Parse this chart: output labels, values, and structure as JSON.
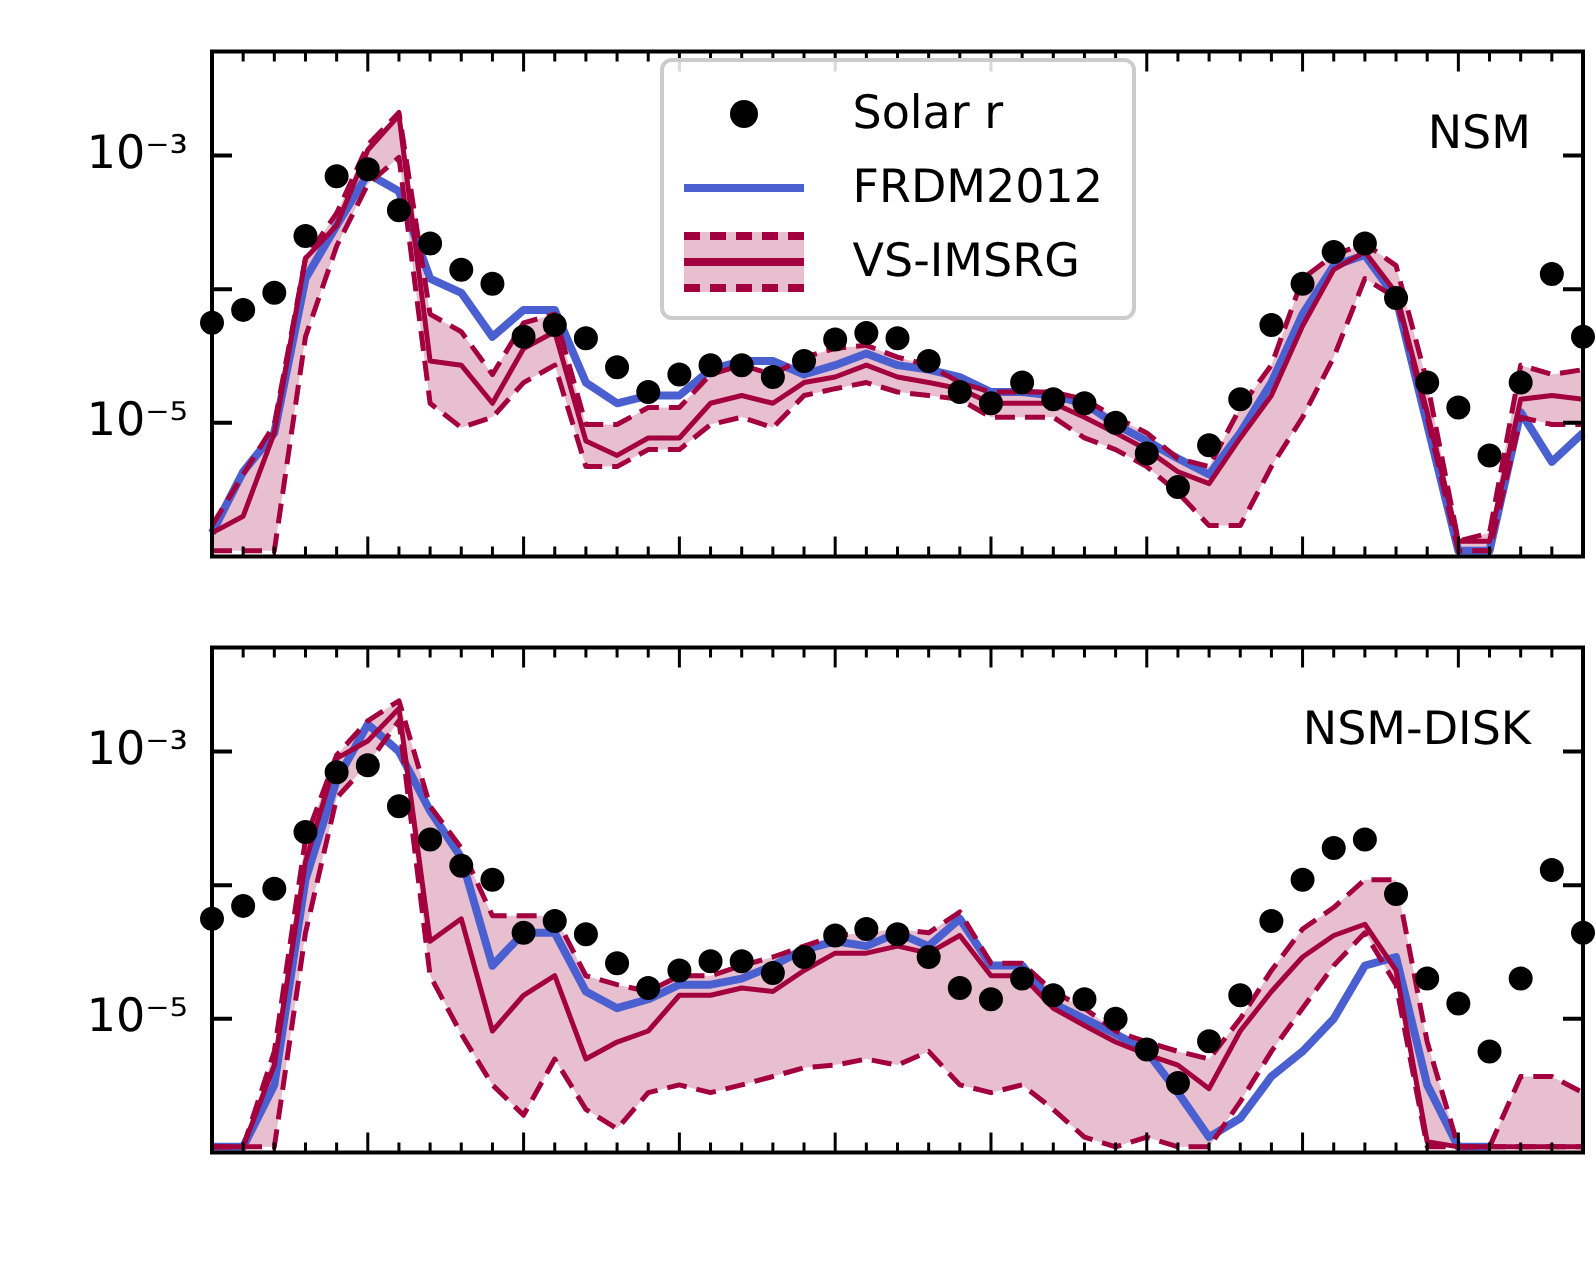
{
  "chart_data": [
    {
      "type": "line",
      "title": "NSM",
      "log": true,
      "grid": false,
      "legend": "top",
      "ylim": [
        1e-06,
        0.006
      ],
      "yticks": [
        {
          "value": 0.001,
          "label": "10⁻³"
        },
        {
          "value": 0.0001,
          "label": null
        },
        {
          "value": 1e-05,
          "label": "10⁻⁵"
        }
      ],
      "categories": [
        null,
        null,
        null,
        null,
        null,
        null,
        null,
        null,
        null,
        null,
        null,
        null,
        null,
        null,
        null,
        null,
        null,
        null,
        null,
        null,
        null,
        null,
        null,
        null,
        null,
        null,
        null,
        null,
        null,
        null,
        null,
        null,
        null,
        null,
        null,
        null,
        null,
        null,
        null,
        null,
        null,
        null,
        null,
        null,
        null
      ],
      "series": [
        {
          "name": "Solar r",
          "type": "scatter",
          "marker": "circle",
          "color": "#000000",
          "values": [
            5.6e-05,
            7e-05,
            9.4e-05,
            0.00025,
            0.0007,
            0.00079,
            0.00039,
            0.00022,
            0.00014,
            0.00011,
            4.4e-05,
            5.4e-05,
            4.3e-05,
            2.6e-05,
            1.7e-05,
            2.3e-05,
            2.7e-05,
            2.7e-05,
            2.2e-05,
            2.9e-05,
            4.2e-05,
            4.7e-05,
            4.3e-05,
            2.9e-05,
            1.7e-05,
            1.4e-05,
            2e-05,
            1.5e-05,
            1.4e-05,
            1e-05,
            5.9e-06,
            3.3e-06,
            6.8e-06,
            1.5e-05,
            5.4e-05,
            0.00011,
            0.00019,
            0.00022,
            8.6e-05,
            2e-05,
            1.3e-05,
            5.7e-06,
            2e-05,
            0.00013,
            4.4e-05
          ]
        },
        {
          "name": "FRDM2012",
          "color": "#4a5fd0",
          "values": [
            1.5e-06,
            4.3e-06,
            8.4e-06,
            0.00012,
            0.0003,
            0.00073,
            0.00054,
            0.00012,
            9.4e-05,
            4.4e-05,
            7e-05,
            7e-05,
            2e-05,
            1.4e-05,
            1.6e-05,
            1.6e-05,
            2.5e-05,
            2.9e-05,
            2.9e-05,
            2.3e-05,
            2.7e-05,
            3.3e-05,
            2.7e-05,
            2.5e-05,
            2.2e-05,
            1.7e-05,
            1.7e-05,
            1.6e-05,
            1.4e-05,
            9.7e-06,
            7.3e-06,
            5.4e-06,
            4.1e-06,
            8.4e-06,
            2e-05,
            6.5e-05,
            0.00015,
            0.00018,
            8.6e-05,
            9.7e-06,
            1.1e-06,
            1.1e-06,
            1.2e-05,
            5.1e-06,
            8.4e-06
          ]
        },
        {
          "name": "VS-IMSRG",
          "color": "#a3003f",
          "values": [
            1.5e-06,
            2e-06,
            8.4e-06,
            0.00017,
            0.0003,
            0.0011,
            0.002,
            2.9e-05,
            2.7e-05,
            1.4e-05,
            3.6e-05,
            4.8e-05,
            7.3e-06,
            5.7e-06,
            7.7e-06,
            7.7e-06,
            1.4e-05,
            1.6e-05,
            1.4e-05,
            2e-05,
            2.2e-05,
            2.7e-05,
            2.2e-05,
            2e-05,
            1.8e-05,
            1.4e-05,
            1.4e-05,
            1.4e-05,
            1.1e-05,
            8.4e-06,
            6.3e-06,
            4.3e-06,
            3.5e-06,
            7.7e-06,
            1.6e-05,
            5.3e-05,
            0.00014,
            0.00019,
            9.4e-05,
            1.2e-05,
            1.3e-06,
            1.3e-06,
            1.5e-05,
            1.6e-05,
            1.5e-05
          ],
          "upper": [
            1.7e-06,
            4.1e-06,
            9.7e-06,
            0.00017,
            0.00037,
            0.0012,
            0.0021,
            6.5e-05,
            4.8e-05,
            2.3e-05,
            5.6e-05,
            6.5e-05,
            9.7e-06,
            9.7e-06,
            1.3e-05,
            1.3e-05,
            2.3e-05,
            2.7e-05,
            2.3e-05,
            3.1e-05,
            3.6e-05,
            3.8e-05,
            3.1e-05,
            2.7e-05,
            2e-05,
            1.7e-05,
            1.7e-05,
            1.7e-05,
            1.5e-05,
            1.1e-05,
            8.4e-06,
            5.4e-06,
            4.7e-06,
            1.3e-05,
            2.7e-05,
            0.00012,
            0.00018,
            0.00022,
            0.00015,
            2e-05,
            1.3e-06,
            1.5e-06,
            2.7e-05,
            2.3e-05,
            2.5e-05
          ],
          "lower": [
            1.1e-06,
            1.1e-06,
            1.1e-06,
            4.4e-05,
            0.00021,
            0.00061,
            0.00097,
            1.4e-05,
            9.2e-06,
            1.1e-05,
            2e-05,
            2.7e-05,
            4.7e-06,
            4.7e-06,
            6.3e-06,
            6.3e-06,
            9.7e-06,
            1.1e-05,
            9.2e-06,
            1.6e-05,
            1.8e-05,
            2e-05,
            1.7e-05,
            1.6e-05,
            1.5e-05,
            1.1e-05,
            1.1e-05,
            1.1e-05,
            7.7e-06,
            6.3e-06,
            4.7e-06,
            3e-06,
            1.7e-06,
            1.7e-06,
            4.7e-06,
            1.1e-05,
            3.1e-05,
            0.00012,
            8.6e-05,
            1.1e-05,
            1.1e-06,
            1.1e-06,
            1.1e-05,
            9.7e-06,
            9.7e-06
          ]
        },
        {
          "line_style": "dashed",
          "color": "#a3003f",
          "values": [
            1.7e-06,
            4.1e-06,
            9.7e-06,
            0.00017,
            0.00037,
            0.0012,
            0.0021,
            6.5e-05,
            4.8e-05,
            2.3e-05,
            5.6e-05,
            6.5e-05,
            9.7e-06,
            9.7e-06,
            1.3e-05,
            1.3e-05,
            2.3e-05,
            2.7e-05,
            2.3e-05,
            3.1e-05,
            3.6e-05,
            3.8e-05,
            3.1e-05,
            2.7e-05,
            2e-05,
            1.7e-05,
            1.7e-05,
            1.7e-05,
            1.5e-05,
            1.1e-05,
            8.4e-06,
            5.4e-06,
            4.7e-06,
            1.3e-05,
            2.7e-05,
            0.00012,
            0.00018,
            0.00022,
            0.00015,
            2e-05,
            1.3e-06,
            1.5e-06,
            2.7e-05,
            2.3e-05,
            2.5e-05
          ]
        },
        {
          "line_style": "dashed",
          "color": "#a3003f",
          "values": [
            1.1e-06,
            1.1e-06,
            1.1e-06,
            4.4e-05,
            0.00021,
            0.00061,
            0.00097,
            1.4e-05,
            9.2e-06,
            1.1e-05,
            2e-05,
            2.7e-05,
            4.7e-06,
            4.7e-06,
            6.3e-06,
            6.3e-06,
            9.7e-06,
            1.1e-05,
            9.2e-06,
            1.6e-05,
            1.8e-05,
            2e-05,
            1.7e-05,
            1.6e-05,
            1.5e-05,
            1.1e-05,
            1.1e-05,
            1.1e-05,
            7.7e-06,
            6.3e-06,
            4.7e-06,
            3e-06,
            1.7e-06,
            1.7e-06,
            4.7e-06,
            1.1e-05,
            3.1e-05,
            0.00012,
            8.6e-05,
            1.1e-05,
            1.1e-06,
            1.1e-06,
            1.1e-05,
            9.7e-06,
            9.7e-06
          ]
        }
      ]
    },
    {
      "type": "line",
      "title": "NSM-DISK",
      "log": true,
      "grid": false,
      "ylim": [
        1e-06,
        0.006
      ],
      "yticks": [
        {
          "value": 0.001,
          "label": "10⁻³"
        },
        {
          "value": 0.0001,
          "label": null
        },
        {
          "value": 1e-05,
          "label": "10⁻⁵"
        }
      ],
      "categories": [
        null,
        null,
        null,
        null,
        null,
        null,
        null,
        null,
        null,
        null,
        null,
        null,
        null,
        null,
        null,
        null,
        null,
        null,
        null,
        null,
        null,
        null,
        null,
        null,
        null,
        null,
        null,
        null,
        null,
        null,
        null,
        null,
        null,
        null,
        null,
        null,
        null,
        null,
        null,
        null,
        null,
        null,
        null,
        null,
        null
      ],
      "series": [
        {
          "type": "scatter",
          "marker": "circle",
          "color": "#000000",
          "values": [
            5.6e-05,
            7e-05,
            9.4e-05,
            0.00025,
            0.0007,
            0.00079,
            0.00039,
            0.00022,
            0.00014,
            0.00011,
            4.4e-05,
            5.4e-05,
            4.3e-05,
            2.6e-05,
            1.7e-05,
            2.3e-05,
            2.7e-05,
            2.7e-05,
            2.2e-05,
            2.9e-05,
            4.2e-05,
            4.7e-05,
            4.3e-05,
            2.9e-05,
            1.7e-05,
            1.4e-05,
            2e-05,
            1.5e-05,
            1.4e-05,
            1e-05,
            5.9e-06,
            3.3e-06,
            6.8e-06,
            1.5e-05,
            5.4e-05,
            0.00011,
            0.00019,
            0.00022,
            8.6e-05,
            2e-05,
            1.3e-05,
            5.7e-06,
            2e-05,
            0.00013,
            4.4e-05
          ]
        },
        {
          "color": "#4a5fd0",
          "values": [
            1.1e-06,
            1.1e-06,
            3.2e-06,
            0.00011,
            0.00061,
            0.0016,
            0.001,
            0.00036,
            0.00016,
            2.5e-05,
            4.4e-05,
            4.4e-05,
            1.6e-05,
            1.2e-05,
            1.4e-05,
            1.8e-05,
            1.8e-05,
            2e-05,
            2.5e-05,
            3.3e-05,
            3.8e-05,
            3.5e-05,
            4.4e-05,
            3.5e-05,
            5.6e-05,
            2.5e-05,
            2.5e-05,
            1.3e-05,
            1e-05,
            7.7e-06,
            5.7e-06,
            2.8e-06,
            1.3e-06,
            1.8e-06,
            3.7e-06,
            5.7e-06,
            1e-05,
            2.5e-05,
            2.9e-05,
            3.2e-06,
            1.1e-06,
            1.1e-06,
            null,
            null,
            null
          ]
        },
        {
          "color": "#a3003f",
          "values": [
            1.1e-06,
            1.1e-06,
            4.5e-06,
            0.00015,
            0.00089,
            0.0012,
            0.0021,
            3.8e-05,
            5.6e-05,
            8.1e-06,
            1.5e-05,
            2.1e-05,
            5e-06,
            6.7e-06,
            8.1e-06,
            1.5e-05,
            1.5e-05,
            1.7e-05,
            1.6e-05,
            2.3e-05,
            3.1e-05,
            3.1e-05,
            3.5e-05,
            3.1e-05,
            4.2e-05,
            2.1e-05,
            2.1e-05,
            1.2e-05,
            8.9e-06,
            6.7e-06,
            5.4e-06,
            4.5e-06,
            3e-06,
            8.1e-06,
            1.6e-05,
            2.9e-05,
            4.2e-05,
            5.1e-05,
            2.3e-05,
            1.2e-06,
            1.1e-06,
            1.1e-06,
            1.1e-06,
            1.1e-06,
            1.1e-06
          ],
          "upper": [
            1.1e-06,
            1.1e-06,
            5.7e-06,
            0.00022,
            0.00094,
            0.0017,
            0.0024,
            0.00039,
            0.00019,
            5.9e-05,
            5.9e-05,
            5.9e-05,
            2.1e-05,
            1.8e-05,
            1.6e-05,
            2.1e-05,
            2.1e-05,
            2.5e-05,
            2.9e-05,
            3.5e-05,
            4.2e-05,
            4.4e-05,
            4.7e-05,
            4.4e-05,
            6.3e-05,
            2.6e-05,
            2.6e-05,
            1.6e-05,
            1.2e-05,
            8.1e-06,
            6.7e-06,
            5.7e-06,
            5e-06,
            1e-05,
            2.3e-05,
            4.7e-05,
            6.8e-05,
            0.00011,
            0.00011,
            6.7e-06,
            1.1e-06,
            1.1e-06,
            3.7e-06,
            3.7e-06,
            2.8e-06
          ],
          "lower": [
            1.1e-06,
            1.1e-06,
            1.1e-06,
            4.4e-05,
            0.00045,
            0.00081,
            0.0017,
            2.1e-05,
            7.7e-06,
            3.2e-06,
            1.9e-06,
            5e-06,
            2.1e-06,
            1.5e-06,
            2.8e-06,
            3.2e-06,
            2.8e-06,
            3.2e-06,
            3.7e-06,
            4.3e-06,
            4.5e-06,
            5e-06,
            4.5e-06,
            5.7e-06,
            3.2e-06,
            2.8e-06,
            3.2e-06,
            2.1e-06,
            1.3e-06,
            1.1e-06,
            1.3e-06,
            1.1e-06,
            1.1e-06,
            2.4e-06,
            5.7e-06,
            1.2e-05,
            2.5e-05,
            4.4e-05,
            1.8e-05,
            1.1e-06,
            1.1e-06,
            1.1e-06,
            1.1e-06,
            1.1e-06,
            1.1e-06
          ]
        },
        {
          "line_style": "dashed",
          "color": "#a3003f",
          "values": [
            1.1e-06,
            1.1e-06,
            5.7e-06,
            0.00022,
            0.00094,
            0.0017,
            0.0024,
            0.00039,
            0.00019,
            5.9e-05,
            5.9e-05,
            5.9e-05,
            2.1e-05,
            1.8e-05,
            1.6e-05,
            2.1e-05,
            2.1e-05,
            2.5e-05,
            2.9e-05,
            3.5e-05,
            4.2e-05,
            4.4e-05,
            4.7e-05,
            4.4e-05,
            6.3e-05,
            2.6e-05,
            2.6e-05,
            1.6e-05,
            1.2e-05,
            8.1e-06,
            6.7e-06,
            5.7e-06,
            5e-06,
            1e-05,
            2.3e-05,
            4.7e-05,
            6.8e-05,
            0.00011,
            0.00011,
            6.7e-06,
            1.1e-06,
            1.1e-06,
            3.7e-06,
            3.7e-06,
            2.8e-06
          ]
        },
        {
          "line_style": "dashed",
          "color": "#a3003f",
          "values": [
            1.1e-06,
            1.1e-06,
            1.1e-06,
            4.4e-05,
            0.00045,
            0.00081,
            0.0017,
            2.1e-05,
            7.7e-06,
            3.2e-06,
            1.9e-06,
            5e-06,
            2.1e-06,
            1.5e-06,
            2.8e-06,
            3.2e-06,
            2.8e-06,
            3.2e-06,
            3.7e-06,
            4.3e-06,
            4.5e-06,
            5e-06,
            4.5e-06,
            5.7e-06,
            3.2e-06,
            2.8e-06,
            3.2e-06,
            2.1e-06,
            1.3e-06,
            1.1e-06,
            1.3e-06,
            1.1e-06,
            1.1e-06,
            2.4e-06,
            5.7e-06,
            1.2e-05,
            2.5e-05,
            4.4e-05,
            1.8e-05,
            1.1e-06,
            1.1e-06,
            1.1e-06,
            1.1e-06,
            1.1e-06,
            1.1e-06
          ]
        }
      ]
    }
  ]
}
